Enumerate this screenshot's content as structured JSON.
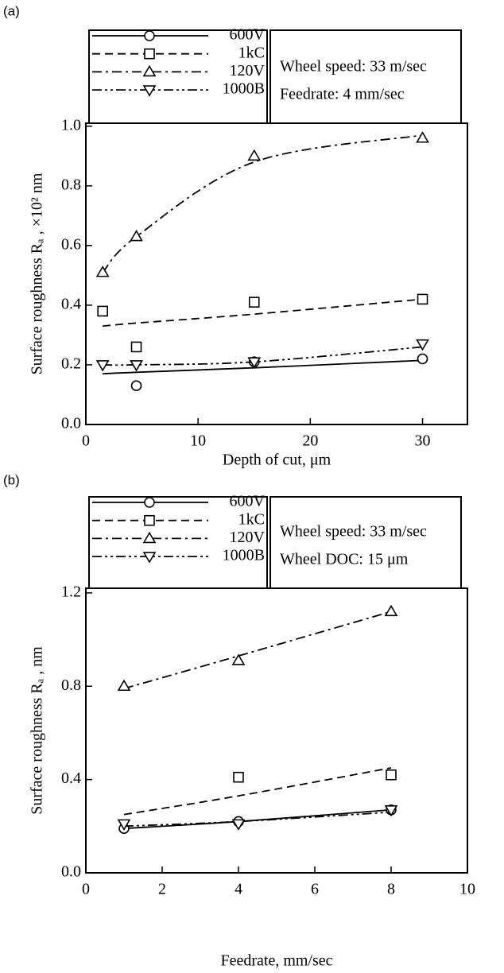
{
  "chart_data": [
    {
      "type": "scatter",
      "label": "(a)",
      "xlabel": "Depth of cut, μm",
      "ylabel": "Surface roughness Rₐ , ×10² nm",
      "annotations": [
        "Wheel speed: 33 m/sec",
        "Feedrate: 4 mm/sec"
      ],
      "x": [
        1.5,
        4.5,
        15,
        30
      ],
      "series": [
        {
          "name": "600V",
          "color": "#000000",
          "marker": "circle",
          "dash": "solid",
          "values": [
            null,
            0.13,
            0.21,
            0.22
          ],
          "trend": [
            0.17,
            0.175,
            0.19,
            0.215
          ]
        },
        {
          "name": "1kC",
          "color": "#000000",
          "marker": "square",
          "dash": "dashed",
          "values": [
            0.38,
            0.26,
            0.41,
            0.42
          ],
          "trend": [
            0.33,
            0.34,
            0.37,
            0.42
          ]
        },
        {
          "name": "120V",
          "color": "#000000",
          "marker": "triangle",
          "dash": "dashdot",
          "values": [
            0.51,
            0.63,
            0.9,
            0.96
          ],
          "trend": [
            0.51,
            0.63,
            0.88,
            0.97
          ]
        },
        {
          "name": "1000B",
          "color": "#000000",
          "marker": "triangle-down",
          "dash": "dashdotdot",
          "values": [
            0.2,
            0.2,
            0.21,
            0.27
          ],
          "trend": [
            0.2,
            0.2,
            0.21,
            0.26
          ]
        }
      ],
      "xlim": [
        0,
        34
      ],
      "xticks": [
        0,
        10,
        20,
        30
      ],
      "ylim": [
        0,
        1.01
      ],
      "yticks": [
        {
          "value": 0,
          "label": "0.0"
        },
        0.2,
        0.4,
        0.6,
        0.8,
        {
          "value": 1,
          "label": "1.0"
        }
      ],
      "grid": false
    },
    {
      "type": "scatter",
      "label": "(b)",
      "xlabel": "Feedrate, mm/sec",
      "ylabel": "Surface roughness Rₐ , nm",
      "annotations": [
        "Wheel speed: 33 m/sec",
        "Wheel DOC: 15 μm"
      ],
      "x": [
        1,
        4,
        8
      ],
      "series": [
        {
          "name": "600V",
          "color": "#000000",
          "marker": "circle",
          "dash": "solid",
          "values": [
            0.19,
            0.22,
            0.27
          ],
          "trend": [
            0.19,
            0.22,
            0.27
          ]
        },
        {
          "name": "1kC",
          "color": "#000000",
          "marker": "square",
          "dash": "dashed",
          "values": [
            null,
            0.41,
            0.42
          ],
          "trend": [
            0.25,
            0.33,
            0.45
          ]
        },
        {
          "name": "120V",
          "color": "#000000",
          "marker": "triangle",
          "dash": "dashdot",
          "values": [
            0.8,
            0.91,
            1.12
          ],
          "trend": [
            0.79,
            0.93,
            1.12
          ]
        },
        {
          "name": "1000B",
          "color": "#000000",
          "marker": "triangle-down",
          "dash": "dashdotdot",
          "values": [
            0.21,
            0.21,
            0.27
          ],
          "trend": [
            0.2,
            0.22,
            0.26
          ]
        }
      ],
      "xlim": [
        0,
        10
      ],
      "xticks": [
        0,
        2,
        4,
        6,
        8,
        10
      ],
      "ylim": [
        0,
        1.22
      ],
      "yticks": [
        {
          "value": 0,
          "label": "0.0"
        },
        0.4,
        0.8,
        1.2
      ],
      "grid": false
    }
  ]
}
